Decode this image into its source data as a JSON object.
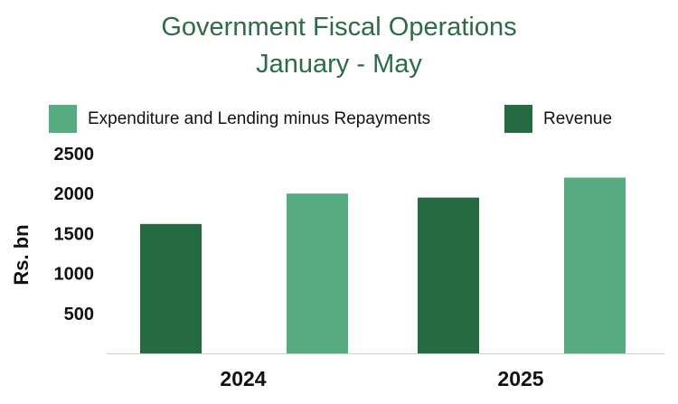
{
  "chart_data": {
    "type": "bar",
    "title_line1": "Government Fiscal Operations",
    "title_line2": "January  - May",
    "categories": [
      "2024",
      "2025"
    ],
    "series": [
      {
        "name": "Revenue",
        "color": "#256b41",
        "values": [
          1620,
          1950
        ]
      },
      {
        "name": "Expenditure and Lending minus Repayments",
        "color": "#57ab80",
        "values": [
          2000,
          2200
        ]
      }
    ],
    "ylabel": "Rs. bn",
    "yticks": [
      500,
      1000,
      1500,
      2000,
      2500
    ],
    "ylim": [
      0,
      2500
    ],
    "legend_position": "top",
    "grid": false
  }
}
